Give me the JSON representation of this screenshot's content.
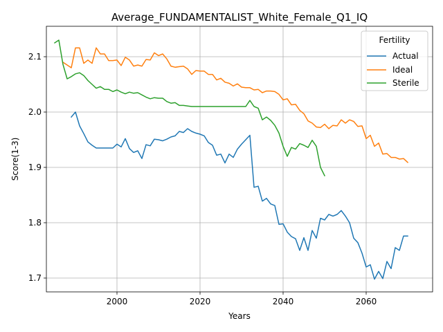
{
  "chart_data": {
    "type": "line",
    "title": "Average_FUNDAMENTALIST_White_Female_Q1_IQ",
    "xlabel": "Years",
    "ylabel": "Score(1-3)",
    "xlim": [
      1983,
      2076
    ],
    "ylim": [
      1.675,
      2.155
    ],
    "xticks": [
      2000,
      2020,
      2040,
      2060
    ],
    "yticks": [
      1.7,
      1.8,
      1.9,
      2.0,
      2.1
    ],
    "ytick_labels": [
      "1.7",
      "1.8",
      "1.9",
      "2.0",
      "2.1"
    ],
    "grid": true,
    "legend": {
      "title": "Fertility",
      "position": "top-right"
    },
    "series": [
      {
        "name": "Actual",
        "color": "#1f77b4",
        "x": [
          1989,
          1990,
          1991,
          1992,
          1993,
          1994,
          1995,
          1996,
          1997,
          1998,
          1999,
          2000,
          2001,
          2002,
          2003,
          2004,
          2005,
          2006,
          2007,
          2008,
          2009,
          2010,
          2011,
          2012,
          2013,
          2014,
          2015,
          2016,
          2017,
          2018,
          2019,
          2020,
          2021,
          2022,
          2023,
          2024,
          2025,
          2026,
          2027,
          2028,
          2029,
          2030,
          2031,
          2032,
          2033,
          2034,
          2035,
          2036,
          2037,
          2038,
          2039,
          2040,
          2041,
          2042,
          2043,
          2044,
          2045,
          2046,
          2047,
          2048,
          2049,
          2050,
          2051,
          2052,
          2053,
          2054,
          2055,
          2056,
          2057,
          2058,
          2059,
          2060,
          2061,
          2062,
          2063,
          2064,
          2065,
          2066,
          2067,
          2068,
          2069,
          2070
        ],
        "y": [
          1.991,
          2.0,
          1.975,
          1.961,
          1.946,
          1.94,
          1.935,
          1.935,
          1.935,
          1.935,
          1.935,
          1.942,
          1.937,
          1.952,
          1.934,
          1.927,
          1.93,
          1.916,
          1.941,
          1.939,
          1.951,
          1.95,
          1.948,
          1.951,
          1.955,
          1.957,
          1.965,
          1.963,
          1.97,
          1.965,
          1.962,
          1.96,
          1.957,
          1.945,
          1.94,
          1.922,
          1.924,
          1.908,
          1.924,
          1.918,
          1.933,
          1.942,
          1.95,
          1.958,
          1.864,
          1.866,
          1.839,
          1.844,
          1.834,
          1.831,
          1.797,
          1.798,
          1.783,
          1.775,
          1.771,
          1.75,
          1.773,
          1.75,
          1.786,
          1.772,
          1.808,
          1.805,
          1.815,
          1.812,
          1.815,
          1.822,
          1.812,
          1.8,
          1.772,
          1.764,
          1.745,
          1.72,
          1.724,
          1.698,
          1.712,
          1.699,
          1.73,
          1.717,
          1.755,
          1.75,
          1.776,
          1.776
        ]
      },
      {
        "name": "Ideal",
        "color": "#ff7f0e",
        "x": [
          1987,
          1988,
          1989,
          1990,
          1991,
          1992,
          1993,
          1994,
          1995,
          1996,
          1997,
          1998,
          1999,
          2000,
          2001,
          2002,
          2003,
          2004,
          2005,
          2006,
          2007,
          2008,
          2009,
          2010,
          2011,
          2012,
          2013,
          2014,
          2015,
          2016,
          2017,
          2018,
          2019,
          2020,
          2021,
          2022,
          2023,
          2024,
          2025,
          2026,
          2027,
          2028,
          2029,
          2030,
          2031,
          2032,
          2033,
          2034,
          2035,
          2036,
          2037,
          2038,
          2039,
          2040,
          2041,
          2042,
          2043,
          2044,
          2045,
          2046,
          2047,
          2048,
          2049,
          2050,
          2051,
          2052,
          2053,
          2054,
          2055,
          2056,
          2057,
          2058,
          2059,
          2060,
          2061,
          2062,
          2063,
          2064,
          2065,
          2066,
          2067,
          2068,
          2069,
          2070
        ],
        "y": [
          2.09,
          2.085,
          2.08,
          2.116,
          2.116,
          2.088,
          2.094,
          2.088,
          2.116,
          2.105,
          2.105,
          2.093,
          2.093,
          2.094,
          2.084,
          2.099,
          2.094,
          2.083,
          2.085,
          2.083,
          2.095,
          2.094,
          2.107,
          2.102,
          2.105,
          2.096,
          2.083,
          2.081,
          2.082,
          2.083,
          2.078,
          2.068,
          2.075,
          2.074,
          2.074,
          2.068,
          2.068,
          2.058,
          2.061,
          2.054,
          2.052,
          2.047,
          2.051,
          2.045,
          2.044,
          2.044,
          2.04,
          2.041,
          2.035,
          2.038,
          2.038,
          2.037,
          2.032,
          2.022,
          2.024,
          2.013,
          2.014,
          2.003,
          1.997,
          1.984,
          1.98,
          1.973,
          1.972,
          1.978,
          1.97,
          1.976,
          1.975,
          1.986,
          1.98,
          1.986,
          1.983,
          1.974,
          1.975,
          1.952,
          1.958,
          1.938,
          1.944,
          1.924,
          1.925,
          1.918,
          1.918,
          1.915,
          1.916,
          1.909
        ]
      },
      {
        "name": "Sterile",
        "color": "#2ca02c",
        "x": [
          1985,
          1986,
          1987,
          1988,
          1989,
          1990,
          1991,
          1992,
          1993,
          1994,
          1995,
          1996,
          1997,
          1998,
          1999,
          2000,
          2001,
          2002,
          2003,
          2004,
          2005,
          2006,
          2007,
          2008,
          2009,
          2010,
          2011,
          2012,
          2013,
          2014,
          2015,
          2016,
          2017,
          2018,
          2019,
          2020,
          2021,
          2022,
          2023,
          2024,
          2025,
          2026,
          2027,
          2028,
          2029,
          2030,
          2031,
          2032,
          2033,
          2034,
          2035,
          2036,
          2037,
          2038,
          2039,
          2040,
          2041,
          2042,
          2043,
          2044,
          2045,
          2046,
          2047,
          2048,
          2049,
          2050
        ],
        "y": [
          2.125,
          2.13,
          2.086,
          2.06,
          2.064,
          2.069,
          2.071,
          2.066,
          2.057,
          2.05,
          2.043,
          2.046,
          2.041,
          2.041,
          2.037,
          2.04,
          2.036,
          2.033,
          2.036,
          2.034,
          2.035,
          2.031,
          2.027,
          2.024,
          2.026,
          2.025,
          2.025,
          2.019,
          2.016,
          2.017,
          2.012,
          2.012,
          2.011,
          2.01,
          2.01,
          2.01,
          2.01,
          2.01,
          2.01,
          2.01,
          2.01,
          2.01,
          2.01,
          2.01,
          2.01,
          2.01,
          2.01,
          2.021,
          2.01,
          2.007,
          1.986,
          1.991,
          1.985,
          1.976,
          1.962,
          1.938,
          1.92,
          1.936,
          1.933,
          1.943,
          1.94,
          1.936,
          1.949,
          1.938,
          1.9,
          1.885
        ]
      }
    ]
  }
}
